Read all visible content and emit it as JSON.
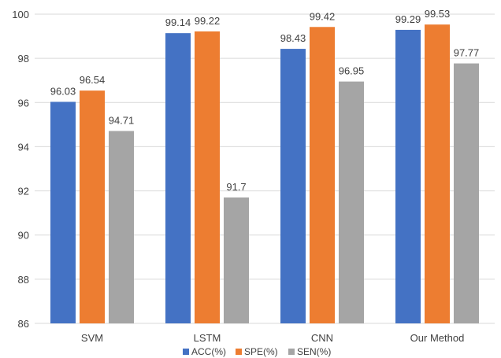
{
  "chart_data": {
    "type": "bar",
    "title": "",
    "xlabel": "",
    "ylabel": "",
    "categories": [
      "SVM",
      "LSTM",
      "CNN",
      "Our Method"
    ],
    "series": [
      {
        "name": "ACC(%)",
        "color": "#4472c4",
        "values": [
          96.03,
          99.14,
          98.43,
          99.29
        ],
        "labels": [
          "96.03",
          "99.14",
          "98.43",
          "99.29"
        ]
      },
      {
        "name": "SPE(%)",
        "color": "#ed7d31",
        "values": [
          96.54,
          99.22,
          99.42,
          99.53
        ],
        "labels": [
          "96.54",
          "99.22",
          "99.42",
          "99.53"
        ]
      },
      {
        "name": "SEN(%)",
        "color": "#a5a5a5",
        "values": [
          94.71,
          91.7,
          96.95,
          97.77
        ],
        "labels": [
          "94.71",
          "91.7",
          "96.95",
          "97.77"
        ]
      }
    ],
    "ylim": [
      86,
      100
    ],
    "yticks": [
      "86",
      "88",
      "90",
      "92",
      "94",
      "96",
      "98",
      "100"
    ],
    "grid": true,
    "legend_position": "bottom"
  }
}
